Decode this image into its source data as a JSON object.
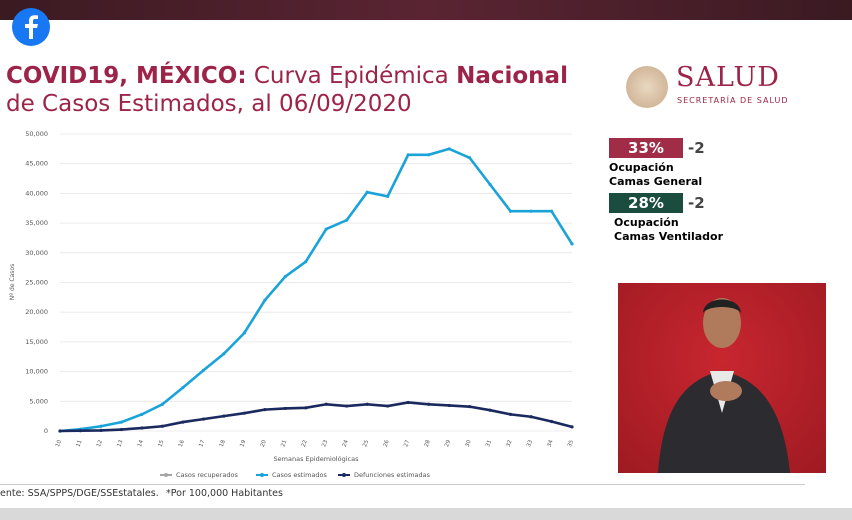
{
  "header": {
    "title_parts": [
      "COVID19, MÉXICO:",
      "Curva Epidémica",
      "Nacional"
    ],
    "title_line2": "de Casos Estimados, al 06/09/2020"
  },
  "logo": {
    "name": "SALUD",
    "subtitle": "SECRETARÍA DE SALUD"
  },
  "indicators": [
    {
      "value": "33%",
      "change": "-2",
      "label_line1": "Ocupación",
      "label_line2": "Camas General",
      "color": "#a12c47"
    },
    {
      "value": "28%",
      "change": "-2",
      "label_line1": "Ocupación",
      "label_line2": "Camas Ventilador",
      "color": "#1b4d3e"
    }
  ],
  "footer": {
    "source": "ente: SSA/SPPS/DGE/SSEstatales.",
    "note": "*Por 100,000 Habitantes"
  },
  "chart_data": {
    "type": "line",
    "x_label": "Semanas Epidemiológicas",
    "y_label": "Nº de Casos",
    "categories": [
      "10",
      "11",
      "12",
      "13",
      "14",
      "15",
      "16",
      "17",
      "18",
      "19",
      "20",
      "21",
      "22",
      "23",
      "24",
      "25",
      "26",
      "27",
      "28",
      "29",
      "30",
      "31",
      "32",
      "33",
      "34",
      "35"
    ],
    "series": [
      {
        "name": "Casos recuperados",
        "color": "#a6a6a6",
        "values": [
          null,
          null,
          null,
          null,
          null,
          null,
          null,
          null,
          null,
          null,
          null,
          null,
          null,
          null,
          null,
          null,
          null,
          null,
          null,
          null,
          null,
          null,
          null,
          null,
          null,
          null
        ]
      },
      {
        "name": "Casos estimados",
        "color": "#1aa3d9",
        "values": [
          0,
          300,
          800,
          1500,
          2800,
          4500,
          7300,
          10200,
          13000,
          16500,
          22000,
          26000,
          28500,
          34000,
          35500,
          40200,
          39500,
          46500,
          46500,
          47500,
          46000,
          41500,
          37000,
          37000,
          37000,
          31500
        ]
      },
      {
        "name": "Defunciones estimadas",
        "color": "#1b2a5e",
        "values": [
          0,
          50,
          100,
          250,
          500,
          800,
          1500,
          2000,
          2500,
          3000,
          3600,
          3800,
          3900,
          4500,
          4200,
          4500,
          4200,
          4800,
          4500,
          4300,
          4100,
          3500,
          2800,
          2400,
          1600,
          700
        ]
      }
    ],
    "ylim": [
      0,
      50000
    ],
    "yticks": [
      0,
      {
        "value": 5000,
        "label": "5,000"
      },
      {
        "value": 10000,
        "label": "10,000"
      },
      {
        "value": 15000,
        "label": "15,000"
      },
      {
        "value": 20000,
        "label": "20,000"
      },
      {
        "value": 25000,
        "label": "25,000"
      },
      {
        "value": 30000,
        "label": "30,000"
      },
      {
        "value": 35000,
        "label": "35,000"
      },
      {
        "value": 40000,
        "label": "40,000"
      },
      {
        "value": 45000,
        "label": "45,000"
      },
      {
        "value": 50000,
        "label": "50,000"
      }
    ],
    "grid": true
  }
}
